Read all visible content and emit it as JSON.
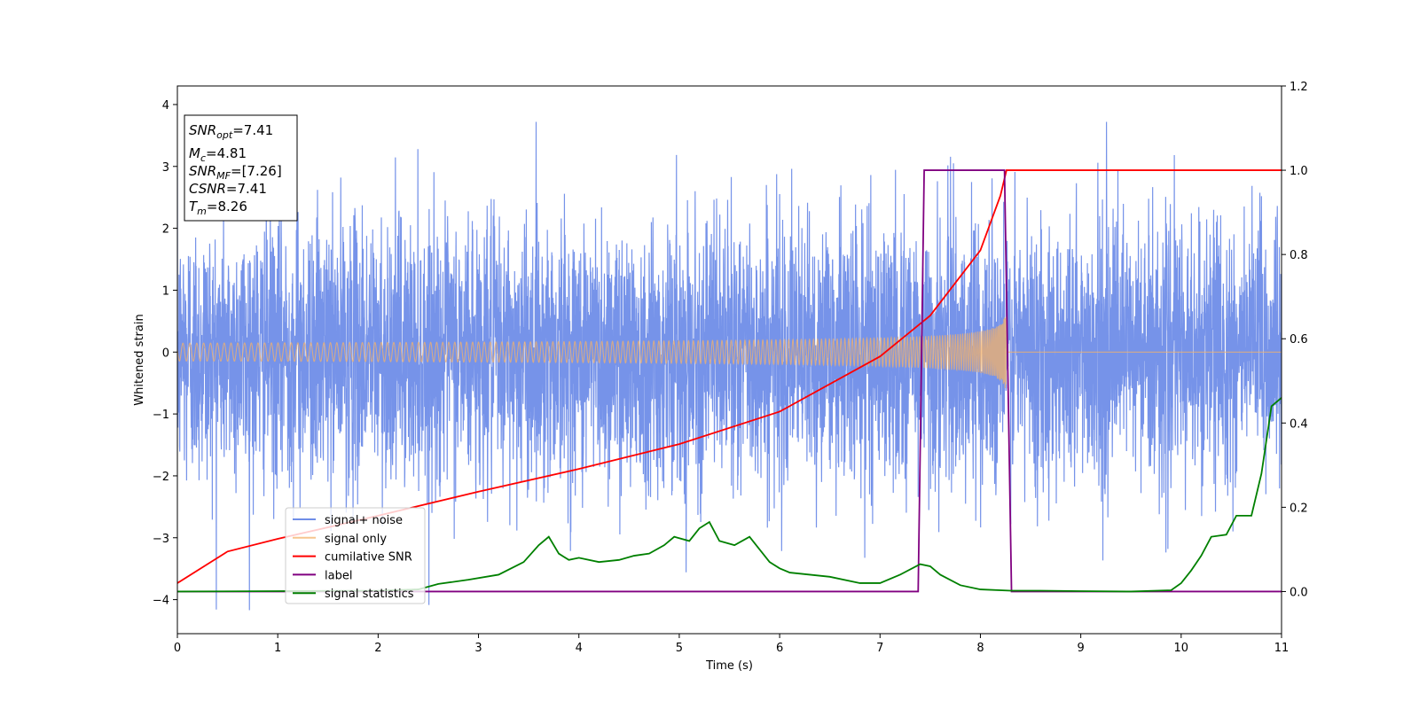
{
  "chart_data": {
    "type": "line",
    "title": "",
    "xlabel": "Time (s)",
    "ylabel": "Whitened strain",
    "xlim": [
      0,
      11
    ],
    "ylim": [
      -4.55,
      4.3
    ],
    "y2lim": [
      -0.1,
      1.2
    ],
    "xticks": [
      0,
      1,
      2,
      3,
      4,
      5,
      6,
      7,
      8,
      9,
      10,
      11
    ],
    "yticks": [
      -4,
      -3,
      -2,
      -1,
      0,
      1,
      2,
      3,
      4
    ],
    "y2ticks": [
      0.0,
      0.2,
      0.4,
      0.6,
      0.8,
      1.0,
      1.2
    ],
    "grid": false,
    "legend_position": "lower-left",
    "colors": {
      "noise": "#6f8de8",
      "signal": "#f4b26a",
      "csnr": "#ff0000",
      "label": "#800080",
      "stats": "#008000"
    },
    "info_box": {
      "snr_opt": {
        "sym": "SNR",
        "sub": "opt",
        "value": "=7.41"
      },
      "mc": {
        "sym": "M",
        "sub": "c",
        "value": "=4.81"
      },
      "snr_mf": {
        "sym": "SNR",
        "sub": "MF",
        "value": "=[7.26]"
      },
      "csnr": {
        "sym": "CSNR",
        "sub": "",
        "value": "=7.41"
      },
      "tm": {
        "sym": "T",
        "sub": "m",
        "value": "=8.26"
      }
    },
    "series": [
      {
        "name": "signal+ noise",
        "axis": "left",
        "kind": "whitened noise plus chirp",
        "std": 1.05,
        "min": -4.17,
        "max": 3.72
      },
      {
        "name": "signal only",
        "axis": "left",
        "kind": "chirp",
        "merger_time": 8.26,
        "peak_amplitude": 0.7
      },
      {
        "name": "cumilative SNR",
        "axis": "right",
        "x": [
          0,
          0.5,
          1,
          2,
          3,
          4,
          5,
          6,
          7,
          7.5,
          8,
          8.2,
          8.26,
          11
        ],
        "y": [
          0.02,
          0.095,
          0.125,
          0.18,
          0.237,
          0.291,
          0.35,
          0.427,
          0.558,
          0.655,
          0.81,
          0.94,
          1.0,
          1.0
        ]
      },
      {
        "name": "label",
        "axis": "right",
        "x": [
          0,
          7.38,
          7.44,
          8.24,
          8.31,
          11
        ],
        "y": [
          0,
          0,
          1,
          1,
          0,
          0
        ]
      },
      {
        "name": "signal statistics",
        "axis": "right",
        "x": [
          0,
          1,
          2,
          2.4,
          2.6,
          2.9,
          3.2,
          3.45,
          3.6,
          3.7,
          3.8,
          3.9,
          4.0,
          4.2,
          4.4,
          4.55,
          4.7,
          4.85,
          4.95,
          5.1,
          5.2,
          5.3,
          5.4,
          5.55,
          5.7,
          5.8,
          5.9,
          6.0,
          6.1,
          6.3,
          6.5,
          6.8,
          7.0,
          7.2,
          7.4,
          7.5,
          7.6,
          7.8,
          8.0,
          8.3,
          8.6,
          9.0,
          9.5,
          9.9,
          10.0,
          10.1,
          10.2,
          10.3,
          10.45,
          10.55,
          10.7,
          10.8,
          10.9,
          11.0
        ],
        "y": [
          0,
          0.001,
          0.002,
          0.005,
          0.018,
          0.028,
          0.04,
          0.07,
          0.11,
          0.13,
          0.09,
          0.075,
          0.08,
          0.07,
          0.075,
          0.085,
          0.09,
          0.11,
          0.13,
          0.12,
          0.15,
          0.165,
          0.12,
          0.11,
          0.13,
          0.1,
          0.07,
          0.055,
          0.045,
          0.04,
          0.035,
          0.02,
          0.02,
          0.04,
          0.065,
          0.06,
          0.04,
          0.015,
          0.005,
          0.002,
          0.002,
          0.001,
          0.0,
          0.003,
          0.02,
          0.05,
          0.085,
          0.13,
          0.135,
          0.18,
          0.18,
          0.28,
          0.44,
          0.46
        ]
      }
    ]
  }
}
